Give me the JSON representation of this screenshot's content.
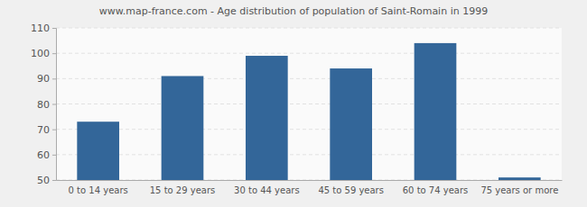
{
  "chart_data": {
    "type": "bar",
    "title": "www.map-france.com - Age distribution of population of Saint-Romain in 1999",
    "categories": [
      "0 to 14 years",
      "15 to 29 years",
      "30 to 44 years",
      "45 to 59 years",
      "60 to 74 years",
      "75 years or more"
    ],
    "values": [
      73,
      91,
      99,
      94,
      104,
      51
    ],
    "color": "#336699",
    "ylim": [
      50,
      110
    ],
    "yticks": [
      50,
      60,
      70,
      80,
      90,
      100,
      110
    ],
    "grid": true
  }
}
